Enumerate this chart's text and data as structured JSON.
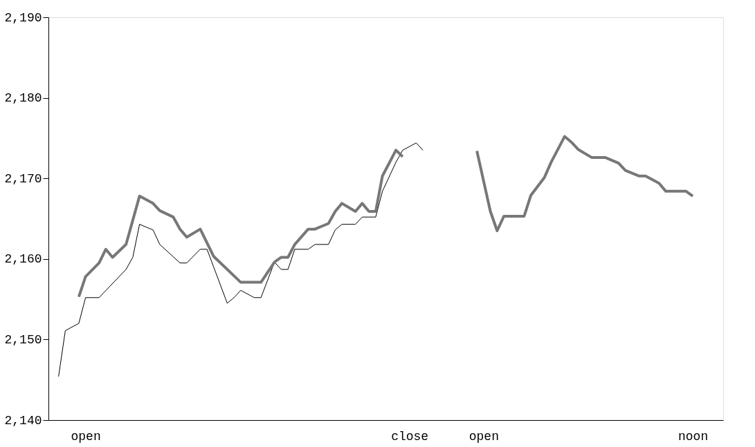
{
  "chart_data": {
    "type": "line",
    "categories": [
      null,
      null,
      null,
      null,
      null,
      "open",
      null,
      null,
      null,
      null,
      null,
      null,
      null,
      null,
      null,
      null,
      null,
      null,
      null,
      null,
      null,
      null,
      null,
      null,
      null,
      null,
      null,
      null,
      null,
      null,
      null,
      null,
      null,
      null,
      null,
      null,
      null,
      null,
      null,
      null,
      null,
      null,
      null,
      null,
      null,
      null,
      null,
      null,
      null,
      null,
      null,
      null,
      null,
      "close",
      null,
      null,
      null,
      null,
      null,
      null,
      null,
      null,
      null,
      null,
      "open",
      null,
      null,
      null,
      null,
      null,
      null,
      null,
      null,
      null,
      null,
      null,
      null,
      null,
      null,
      null,
      null,
      null,
      null,
      null,
      null,
      null,
      null,
      null,
      null,
      null,
      null,
      null,
      null,
      null,
      null,
      "noon",
      null,
      null,
      null,
      null
    ],
    "ylim": [
      2140,
      2190
    ],
    "yticks": [
      {
        "value": 2140,
        "label": "2,140"
      },
      {
        "value": 2150,
        "label": "2,150"
      },
      {
        "value": 2160,
        "label": "2,160"
      },
      {
        "value": 2170,
        "label": "2,170"
      },
      {
        "value": 2180,
        "label": "2,180"
      },
      {
        "value": 2190,
        "label": "2,190"
      }
    ],
    "marker": "none",
    "line_style": "solid",
    "series": [
      {
        "color": "#000000",
        "values": [
          null,
          2145.4,
          2151.1,
          null,
          2152.0,
          2155.2,
          null,
          2155.2,
          null,
          null,
          null,
          2158.7,
          2160.2,
          2164.3,
          null,
          2163.6,
          2161.8,
          null,
          null,
          2159.5,
          2159.5,
          null,
          2161.2,
          2161.2,
          null,
          null,
          2154.5,
          2155.2,
          2156.1,
          null,
          2155.2,
          2155.2,
          null,
          2159.6,
          2158.7,
          2158.7,
          2161.2,
          null,
          2161.2,
          2161.8,
          null,
          2161.8,
          2163.6,
          2164.3,
          null,
          2164.3,
          2165.2,
          null,
          2165.2,
          2168.4,
          null,
          2172.0,
          2173.5,
          null,
          2174.4,
          2173.5,
          null,
          null,
          null,
          null,
          null,
          null,
          null,
          null,
          null,
          null,
          null,
          null,
          null,
          null,
          null,
          null,
          null,
          null,
          null,
          null,
          null,
          null,
          null,
          null,
          null,
          null,
          null,
          null,
          null,
          null,
          null,
          null,
          null,
          null,
          null,
          null,
          null,
          null,
          null,
          null,
          null,
          null,
          null,
          null
        ]
      },
      {
        "color": "#777777",
        "values": [
          null,
          null,
          null,
          null,
          2155.3,
          2157.8,
          null,
          2159.5,
          2161.2,
          2160.2,
          null,
          2161.8,
          null,
          2167.8,
          null,
          2166.9,
          2166.0,
          null,
          2165.2,
          2163.7,
          2162.7,
          null,
          2163.7,
          null,
          2160.3,
          null,
          null,
          null,
          2157.1,
          null,
          null,
          2157.1,
          null,
          2159.6,
          2160.2,
          2160.2,
          2161.8,
          null,
          2163.7,
          2163.7,
          null,
          2164.4,
          2165.9,
          2166.9,
          null,
          2165.9,
          2166.9,
          2165.9,
          2165.9,
          2170.3,
          null,
          2173.5,
          2172.7,
          null,
          null,
          null,
          null,
          null,
          null,
          null,
          null,
          null,
          null,
          null,
          null,
          null,
          null,
          null,
          null,
          null,
          null,
          null,
          null,
          null,
          null,
          null,
          null,
          null,
          null,
          null,
          null,
          null,
          null,
          null,
          null,
          null,
          null,
          null,
          null,
          null,
          null,
          null,
          null,
          null,
          null,
          null,
          null,
          null,
          null,
          null
        ]
      },
      {
        "color": "#777777",
        "values": [
          null,
          null,
          null,
          null,
          null,
          null,
          null,
          null,
          null,
          null,
          null,
          null,
          null,
          null,
          null,
          null,
          null,
          null,
          null,
          null,
          null,
          null,
          null,
          null,
          null,
          null,
          null,
          null,
          null,
          null,
          null,
          null,
          null,
          null,
          null,
          null,
          null,
          null,
          null,
          null,
          null,
          null,
          null,
          null,
          null,
          null,
          null,
          null,
          null,
          null,
          null,
          null,
          null,
          null,
          null,
          null,
          null,
          null,
          null,
          null,
          null,
          null,
          null,
          2173.4,
          null,
          2165.9,
          2163.5,
          2165.3,
          null,
          null,
          2165.3,
          2167.9,
          null,
          2170.1,
          2172.0,
          null,
          2175.2,
          2174.5,
          2173.6,
          null,
          2172.6,
          null,
          2172.6,
          null,
          2171.9,
          2171.0,
          null,
          2170.3,
          2170.3,
          null,
          2169.4,
          2168.4,
          null,
          null,
          2168.4,
          2167.8,
          null,
          null,
          null,
          null
        ]
      }
    ]
  }
}
